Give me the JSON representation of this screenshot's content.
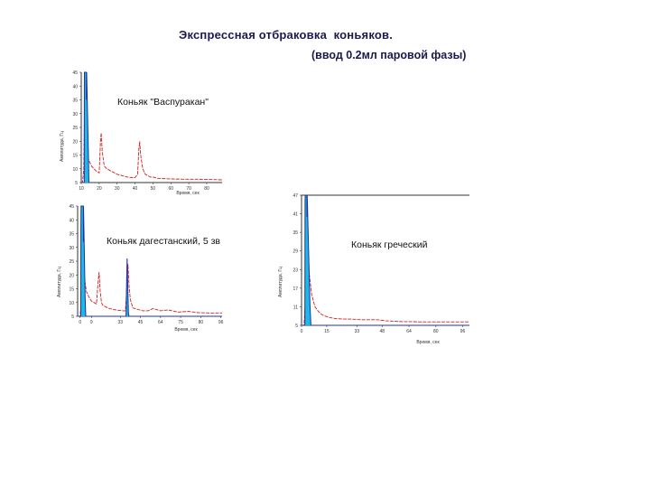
{
  "slide": {
    "title": "Экспрессная отбраковка  коньяков.",
    "subtitle": "(ввод 0.2мл паровой фазы)"
  },
  "colors": {
    "red_trace": "#d42020",
    "blue_trace": "#2030a0",
    "cyan_fill": "#1fb8e6",
    "axis": "#333333"
  },
  "chart_data": [
    {
      "type": "line",
      "label": "Коньяк \"Васпуракан\"",
      "xlabel": "Время, сек",
      "ylabel": "Амплитуда, Гц",
      "ylim": [
        5,
        45
      ],
      "xlim": [
        0,
        110
      ],
      "y_ticks": [
        "45",
        "40",
        "35",
        "30",
        "25",
        "20",
        "15",
        "10",
        "5"
      ],
      "x_ticks": [
        {
          "x": 0,
          "label": "10"
        },
        {
          "x": 14,
          "label": "20"
        },
        {
          "x": 28,
          "label": "30"
        },
        {
          "x": 42,
          "label": "40"
        },
        {
          "x": 56,
          "label": "50"
        },
        {
          "x": 70,
          "label": "60"
        },
        {
          "x": 84,
          "label": "70"
        },
        {
          "x": 98,
          "label": "80"
        }
      ],
      "series": [
        {
          "color": "red",
          "x": [
            0,
            1,
            2,
            2.6,
            3.2,
            4,
            6,
            8,
            10,
            12,
            14,
            15,
            15.6,
            16.4,
            18,
            20,
            24,
            28,
            32,
            36,
            40,
            42,
            44,
            45,
            45.6,
            46.4,
            48,
            50,
            52,
            54,
            56,
            60,
            70,
            80,
            90,
            100,
            110
          ],
          "y": [
            5,
            5,
            10,
            35,
            26,
            16,
            13,
            11,
            10,
            9,
            8.5,
            20,
            23,
            16,
            11,
            10,
            9,
            8,
            7.5,
            7,
            6.8,
            6.8,
            8,
            17,
            20,
            15,
            10,
            8,
            7.5,
            7,
            7,
            6.5,
            6.3,
            6.2,
            6.2,
            6.1,
            6
          ]
        },
        {
          "color": "blue",
          "x": [
            0,
            2.3,
            2.4,
            2.5,
            4.0,
            4.1,
            4.2,
            5.5,
            6,
            8,
            10
          ],
          "y": [
            5,
            5,
            35,
            45,
            45,
            35,
            45,
            17,
            5,
            5,
            5
          ]
        }
      ]
    },
    {
      "type": "line",
      "label": "Коньяк дагестанский, 5 зв",
      "xlabel": "Время, сек",
      "ylabel": "Амплитуда, Гц",
      "ylim": [
        5,
        45
      ],
      "xlim": [
        0,
        115
      ],
      "y_ticks": [
        "45",
        "40",
        "35",
        "30",
        "25",
        "20",
        "15",
        "10",
        "5"
      ],
      "x_ticks": [
        {
          "x": 2,
          "label": "0"
        },
        {
          "x": 11,
          "label": "9"
        },
        {
          "x": 34,
          "label": "33"
        },
        {
          "x": 50,
          "label": "45"
        },
        {
          "x": 66,
          "label": "64"
        },
        {
          "x": 82,
          "label": "75"
        },
        {
          "x": 98,
          "label": "80"
        },
        {
          "x": 114,
          "label": "96"
        }
      ],
      "series": [
        {
          "color": "red",
          "x": [
            0,
            2,
            3,
            3.6,
            4.2,
            5,
            7,
            9,
            11,
            13,
            15,
            16,
            17,
            18,
            19,
            20,
            22,
            24,
            28,
            32,
            36,
            38,
            39,
            40,
            41,
            42,
            44,
            48,
            52,
            56,
            60,
            66,
            72,
            80,
            88,
            96,
            106,
            115
          ],
          "y": [
            5,
            5,
            12,
            39,
            28,
            20,
            14,
            12,
            10.5,
            10,
            9.5,
            16,
            21,
            14,
            10,
            9,
            8.5,
            8,
            7.5,
            7.2,
            7,
            7,
            14,
            24,
            16,
            11,
            8,
            7.5,
            7,
            7,
            7.8,
            7,
            7.3,
            6.5,
            6.8,
            6.3,
            6.2,
            6.2
          ]
        },
        {
          "color": "blue",
          "x": [
            0,
            2.5,
            2.6,
            2.7,
            4.5,
            4.6,
            4.7,
            6,
            6.5,
            38.5,
            39,
            39.4,
            39.8,
            40.5,
            41,
            115
          ],
          "y": [
            5,
            5,
            35,
            45,
            45,
            32,
            45,
            12,
            5,
            5,
            18,
            26,
            18,
            6,
            5,
            5
          ]
        }
      ]
    },
    {
      "type": "line",
      "label": "Коньяк греческий",
      "xlabel": "Время, сек",
      "ylabel": "Амплитуда, Гц",
      "ylim": [
        5,
        47
      ],
      "xlim": [
        0,
        100
      ],
      "y_ticks": [
        "47",
        "41",
        "35",
        "29",
        "23",
        "17",
        "11",
        "5"
      ],
      "x_ticks": [
        {
          "x": 0,
          "label": "0"
        },
        {
          "x": 15,
          "label": "15"
        },
        {
          "x": 33,
          "label": "33"
        },
        {
          "x": 48,
          "label": "48"
        },
        {
          "x": 64,
          "label": "64"
        },
        {
          "x": 80,
          "label": "80"
        },
        {
          "x": 96,
          "label": "96"
        }
      ],
      "series": [
        {
          "color": "red",
          "x": [
            0,
            1.5,
            2.2,
            2.6,
            3.2,
            4.5,
            6,
            8,
            10,
            12,
            14,
            16,
            18,
            20,
            25,
            30,
            35,
            40,
            45,
            50,
            55,
            60,
            65,
            70,
            80,
            90,
            100
          ],
          "y": [
            5,
            5,
            12,
            47,
            40,
            22,
            15,
            11,
            9.5,
            8.5,
            8,
            7.6,
            7.4,
            7.2,
            7,
            7,
            6.8,
            6.8,
            6.8,
            6.5,
            6.3,
            6.2,
            6.2,
            6.1,
            6.1,
            6.1,
            6.1
          ]
        },
        {
          "color": "blue",
          "x": [
            0,
            2.0,
            2.1,
            2.2,
            3.2,
            3.3,
            3.4,
            5.0,
            5.6,
            100
          ],
          "y": [
            5,
            5,
            45,
            47,
            47,
            40,
            47,
            12,
            5,
            5
          ]
        }
      ]
    }
  ]
}
